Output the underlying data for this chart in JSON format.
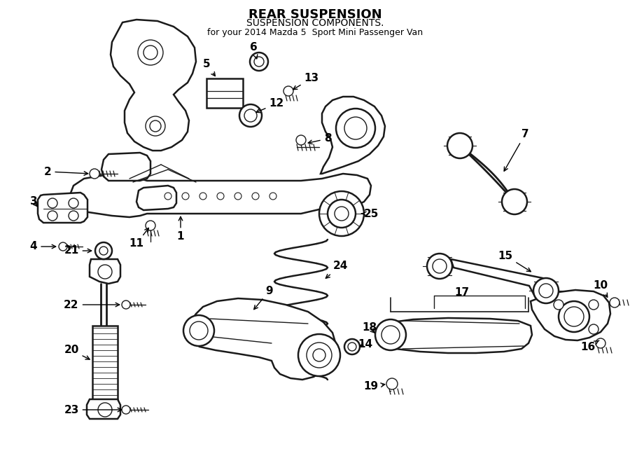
{
  "title": "REAR SUSPENSION",
  "subtitle": "SUSPENSION COMPONENTS.",
  "vehicle": "for your 2014 Mazda 5  Sport Mini Passenger Van",
  "bg_color": "#ffffff",
  "line_color": "#1a1a1a",
  "text_color": "#000000",
  "fig_width": 9.0,
  "fig_height": 6.61,
  "dpi": 100,
  "xlim": [
    0,
    900
  ],
  "ylim": [
    0,
    661
  ],
  "components": {
    "subframe_color": "#ffffff",
    "lw_main": 1.8,
    "lw_thin": 1.0
  }
}
